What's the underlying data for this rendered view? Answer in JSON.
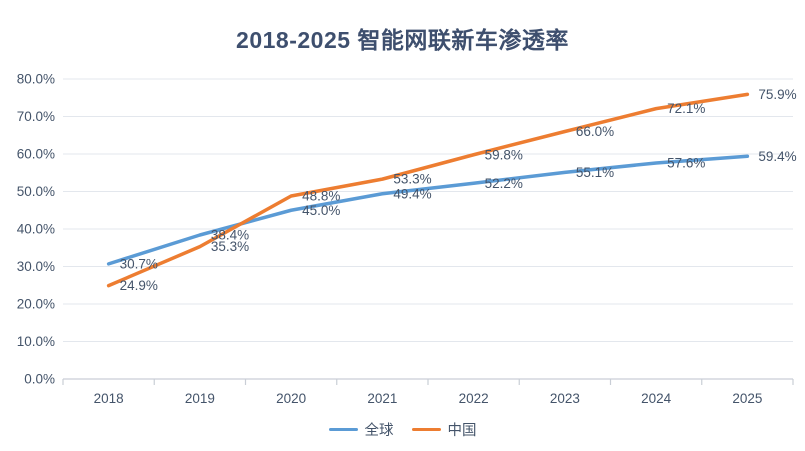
{
  "chart_data": {
    "type": "line",
    "title": "2018-2025 智能网联新车渗透率",
    "categories": [
      "2018",
      "2019",
      "2020",
      "2021",
      "2022",
      "2023",
      "2024",
      "2025"
    ],
    "series": [
      {
        "name": "全球",
        "color": "#5B9BD5",
        "values": [
          30.7,
          38.4,
          45.0,
          49.4,
          52.2,
          55.1,
          57.6,
          59.4
        ]
      },
      {
        "name": "中国",
        "color": "#ED7D31",
        "values": [
          24.9,
          35.3,
          48.8,
          53.3,
          59.8,
          66.0,
          72.1,
          75.9
        ]
      }
    ],
    "xlabel": "",
    "ylabel": "",
    "ylim": [
      0,
      80
    ],
    "y_tick_step": 10,
    "y_tick_labels": [
      "0.0%",
      "10.0%",
      "20.0%",
      "30.0%",
      "40.0%",
      "50.0%",
      "60.0%",
      "70.0%",
      "80.0%"
    ],
    "grid": true,
    "data_labels": true,
    "data_label_format": "0.0%",
    "legend_position": "bottom"
  },
  "colors": {
    "title_text": "#3E4F6E",
    "axis_text": "#44546A",
    "label_text": "#44546A",
    "gridline": "#E3E7ED",
    "axis_line": "#C9CED6"
  }
}
